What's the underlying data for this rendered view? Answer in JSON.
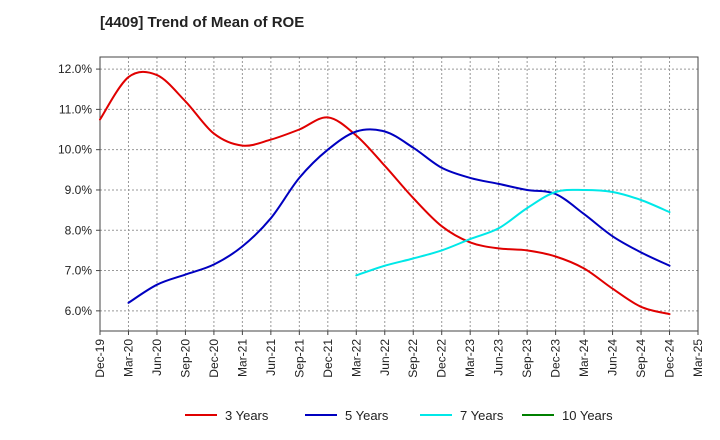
{
  "chart_data": {
    "type": "line",
    "title": "[4409]  Trend of Mean of ROE",
    "x_tick_labels": [
      "Dec-19",
      "Mar-20",
      "Jun-20",
      "Sep-20",
      "Dec-20",
      "Mar-21",
      "Jun-21",
      "Sep-21",
      "Dec-21",
      "Mar-22",
      "Jun-22",
      "Sep-22",
      "Dec-22",
      "Mar-23",
      "Jun-23",
      "Sep-23",
      "Dec-23",
      "Mar-24",
      "Jun-24",
      "Sep-24",
      "Dec-24",
      "Mar-25"
    ],
    "y_tick_labels": [
      "6.0%",
      "7.0%",
      "8.0%",
      "9.0%",
      "10.0%",
      "11.0%",
      "12.0%"
    ],
    "y_ticks": [
      6.0,
      7.0,
      8.0,
      9.0,
      10.0,
      11.0,
      12.0
    ],
    "ylim": [
      5.5,
      12.3
    ],
    "xlim_quarters": [
      0,
      21
    ],
    "grid": true,
    "legend_position": "bottom",
    "series": [
      {
        "name": "3 Years",
        "color": "#e00000",
        "points": [
          [
            0,
            10.75
          ],
          [
            1,
            11.8
          ],
          [
            2,
            11.85
          ],
          [
            3,
            11.2
          ],
          [
            4,
            10.4
          ],
          [
            5,
            10.1
          ],
          [
            6,
            10.25
          ],
          [
            7,
            10.5
          ],
          [
            8,
            10.8
          ],
          [
            9,
            10.35
          ],
          [
            10,
            9.6
          ],
          [
            11,
            8.8
          ],
          [
            12,
            8.1
          ],
          [
            13,
            7.7
          ],
          [
            14,
            7.55
          ],
          [
            15,
            7.5
          ],
          [
            16,
            7.35
          ],
          [
            17,
            7.05
          ],
          [
            18,
            6.55
          ],
          [
            19,
            6.1
          ],
          [
            20,
            5.92
          ]
        ]
      },
      {
        "name": "5 Years",
        "color": "#0000c0",
        "points": [
          [
            1,
            6.2
          ],
          [
            2,
            6.65
          ],
          [
            3,
            6.9
          ],
          [
            4,
            7.15
          ],
          [
            5,
            7.6
          ],
          [
            6,
            8.3
          ],
          [
            7,
            9.3
          ],
          [
            8,
            10.0
          ],
          [
            9,
            10.45
          ],
          [
            10,
            10.45
          ],
          [
            11,
            10.05
          ],
          [
            12,
            9.55
          ],
          [
            13,
            9.3
          ],
          [
            14,
            9.15
          ],
          [
            15,
            9.0
          ],
          [
            16,
            8.9
          ],
          [
            17,
            8.4
          ],
          [
            18,
            7.85
          ],
          [
            19,
            7.45
          ],
          [
            20,
            7.12
          ]
        ]
      },
      {
        "name": "7 Years",
        "color": "#00e8e8",
        "points": [
          [
            9,
            6.88
          ],
          [
            10,
            7.12
          ],
          [
            11,
            7.3
          ],
          [
            12,
            7.5
          ],
          [
            13,
            7.78
          ],
          [
            14,
            8.05
          ],
          [
            15,
            8.55
          ],
          [
            16,
            8.95
          ],
          [
            17,
            9.0
          ],
          [
            18,
            8.95
          ],
          [
            19,
            8.75
          ],
          [
            20,
            8.45
          ]
        ]
      },
      {
        "name": "10 Years",
        "color": "#008000",
        "points": []
      }
    ]
  }
}
